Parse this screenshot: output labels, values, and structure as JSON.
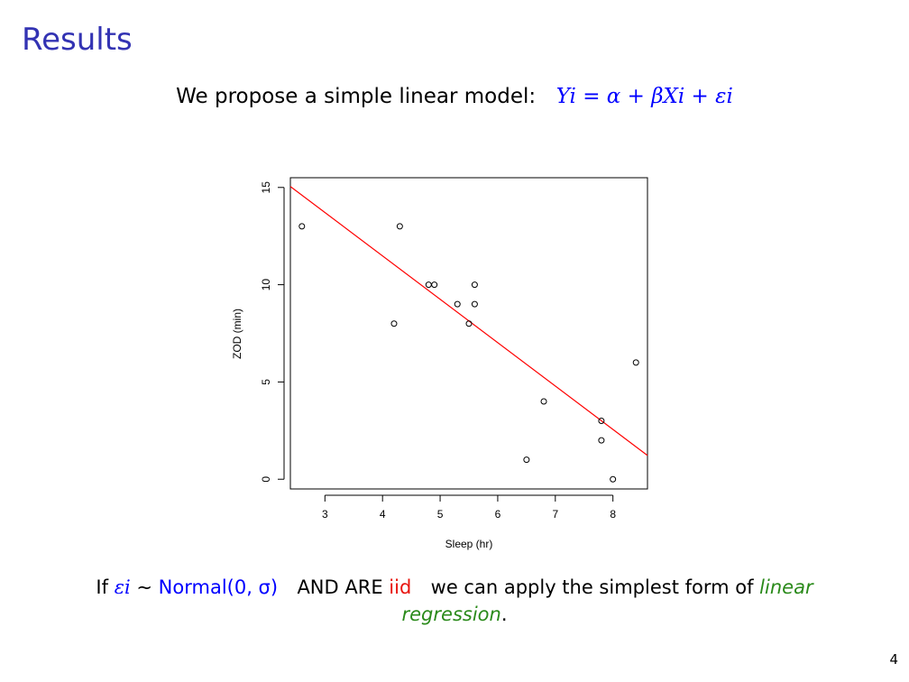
{
  "slide": {
    "title": "Results",
    "page_number": "4"
  },
  "model": {
    "intro": "We propose a simple linear model:",
    "equation": "Yi = α + βXi + εi"
  },
  "conclusion": {
    "if_text": "If",
    "epsilon": "εi",
    "tilde": "∼",
    "distribution": "Normal(0, σ)",
    "and_are": "AND ARE",
    "iid": "iid",
    "middle": "we can apply the simplest form of",
    "linear": "linear",
    "regression": "regression",
    "period": "."
  },
  "colors": {
    "title": "#3333b3",
    "math_blue": "#0000ff",
    "iid_red": "#e8140d",
    "italic_green": "#2a8a1a",
    "regression_line": "#ff0000"
  },
  "chart_data": {
    "type": "scatter",
    "xlabel": "Sleep (hr)",
    "ylabel": "ZOD (min)",
    "xlim": [
      2.4,
      8.6
    ],
    "ylim": [
      -0.5,
      15.5
    ],
    "x_ticks": [
      3,
      4,
      5,
      6,
      7,
      8
    ],
    "y_ticks": [
      0,
      5,
      10,
      15
    ],
    "points": [
      {
        "x": 2.6,
        "y": 13
      },
      {
        "x": 4.2,
        "y": 8
      },
      {
        "x": 4.3,
        "y": 13
      },
      {
        "x": 4.8,
        "y": 10
      },
      {
        "x": 4.9,
        "y": 10
      },
      {
        "x": 5.3,
        "y": 9
      },
      {
        "x": 5.5,
        "y": 8
      },
      {
        "x": 5.6,
        "y": 10
      },
      {
        "x": 5.6,
        "y": 9
      },
      {
        "x": 6.5,
        "y": 1
      },
      {
        "x": 6.8,
        "y": 4
      },
      {
        "x": 7.8,
        "y": 3
      },
      {
        "x": 7.8,
        "y": 2
      },
      {
        "x": 8.0,
        "y": 0
      },
      {
        "x": 8.4,
        "y": 6
      }
    ],
    "regression_line": {
      "intercept": 20.4,
      "slope": -2.23
    },
    "grid": false,
    "legend": "none"
  }
}
